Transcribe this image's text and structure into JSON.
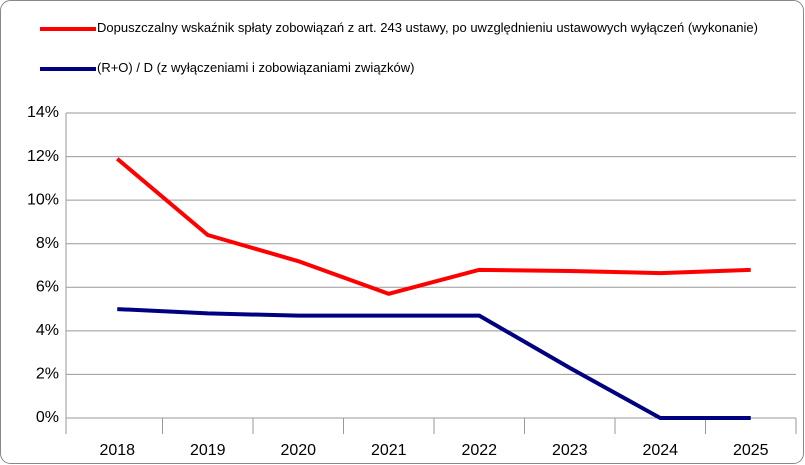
{
  "chart_data": {
    "type": "line",
    "categories": [
      "2018",
      "2019",
      "2020",
      "2021",
      "2022",
      "2023",
      "2024",
      "2025"
    ],
    "series": [
      {
        "name": "Dopuszczalny wskaźnik spłaty zobowiązań z art. 243 ustawy, po uwzględnieniu ustawowych wyłączeń (wykonanie)",
        "color": "#ff0000",
        "values": [
          11.9,
          8.4,
          7.2,
          5.7,
          6.8,
          6.75,
          6.65,
          6.8
        ]
      },
      {
        "name": "(R+O) / D (z wyłączeniami i zobowiązaniami związków)",
        "color": "#000080",
        "values": [
          5.0,
          4.8,
          4.7,
          4.7,
          4.7,
          2.3,
          0.0,
          0.0
        ]
      }
    ],
    "ylim": [
      0,
      14
    ],
    "yticks": [
      {
        "value": 0,
        "label": "0%"
      },
      {
        "value": 2,
        "label": "2%"
      },
      {
        "value": 4,
        "label": "4%"
      },
      {
        "value": 6,
        "label": "6%"
      },
      {
        "value": 8,
        "label": "8%"
      },
      {
        "value": 10,
        "label": "10%"
      },
      {
        "value": 12,
        "label": "12%"
      },
      {
        "value": 14,
        "label": "14%"
      }
    ],
    "grid": true,
    "legend": "top"
  }
}
